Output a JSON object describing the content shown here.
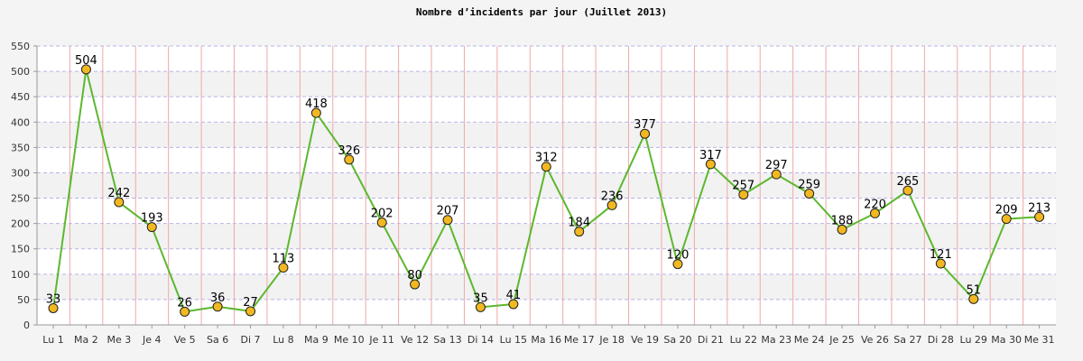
{
  "chart_data": {
    "type": "line",
    "title": "Nombre d’incidents par jour (Juillet 2013)",
    "xlabel": "",
    "ylabel": "",
    "ylim": [
      0,
      550
    ],
    "y_ticks": [
      0,
      50,
      100,
      150,
      200,
      250,
      300,
      350,
      400,
      450,
      500,
      550
    ],
    "grid": true,
    "categories": [
      "Lu 1",
      "Ma 2",
      "Me 3",
      "Je 4",
      "Ve 5",
      "Sa 6",
      "Di 7",
      "Lu 8",
      "Ma 9",
      "Me 10",
      "Je 11",
      "Ve 12",
      "Sa 13",
      "Di 14",
      "Lu 15",
      "Ma 16",
      "Me 17",
      "Je 18",
      "Ve 19",
      "Sa 20",
      "Di 21",
      "Lu 22",
      "Ma 23",
      "Me 24",
      "Je 25",
      "Ve 26",
      "Sa 27",
      "Di 28",
      "Lu 29",
      "Ma 30",
      "Me 31"
    ],
    "series": [
      {
        "values": [
          33,
          504,
          242,
          193,
          26,
          36,
          27,
          113,
          418,
          326,
          202,
          80,
          207,
          35,
          41,
          312,
          184,
          236,
          377,
          120,
          317,
          257,
          297,
          259,
          188,
          220,
          265,
          121,
          51,
          209,
          213
        ]
      }
    ],
    "colors": {
      "line": "#5cb82e",
      "marker_fill": "#f2b821",
      "marker_stroke": "#222222",
      "band_light": "#ffffff",
      "band_dark": "#f2f2f2",
      "hgrid": "#b9b3e8",
      "vgrid": "#f0a8a8",
      "background": "#f4f4f4"
    }
  }
}
